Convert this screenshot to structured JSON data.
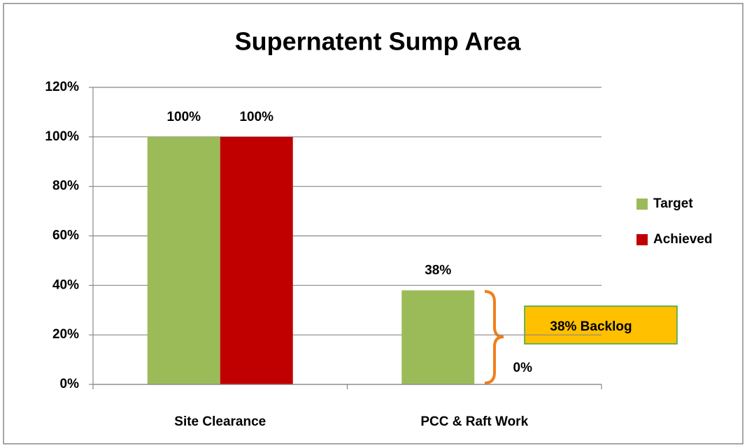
{
  "chart_data": {
    "type": "bar",
    "title": "Supernatent Sump Area",
    "categories": [
      "Site Clearance",
      "PCC & Raft Work"
    ],
    "series": [
      {
        "name": "Target",
        "color": "#9bbb59",
        "values": [
          100,
          38
        ],
        "value_labels": [
          "100%",
          "38%"
        ]
      },
      {
        "name": "Achieved",
        "color": "#c00000",
        "values": [
          100,
          0
        ],
        "value_labels": [
          "100%",
          "0%"
        ]
      }
    ],
    "ylim": [
      0,
      120
    ],
    "yticks": [
      {
        "value": 0,
        "label": "0%"
      },
      {
        "value": 20,
        "label": "20%"
      },
      {
        "value": 40,
        "label": "40%"
      },
      {
        "value": 60,
        "label": "60%"
      },
      {
        "value": 80,
        "label": "80%"
      },
      {
        "value": 100,
        "label": "100%"
      },
      {
        "value": 120,
        "label": "120%"
      }
    ],
    "grid": true,
    "legend": "right",
    "annotation": "38% Backlog"
  }
}
